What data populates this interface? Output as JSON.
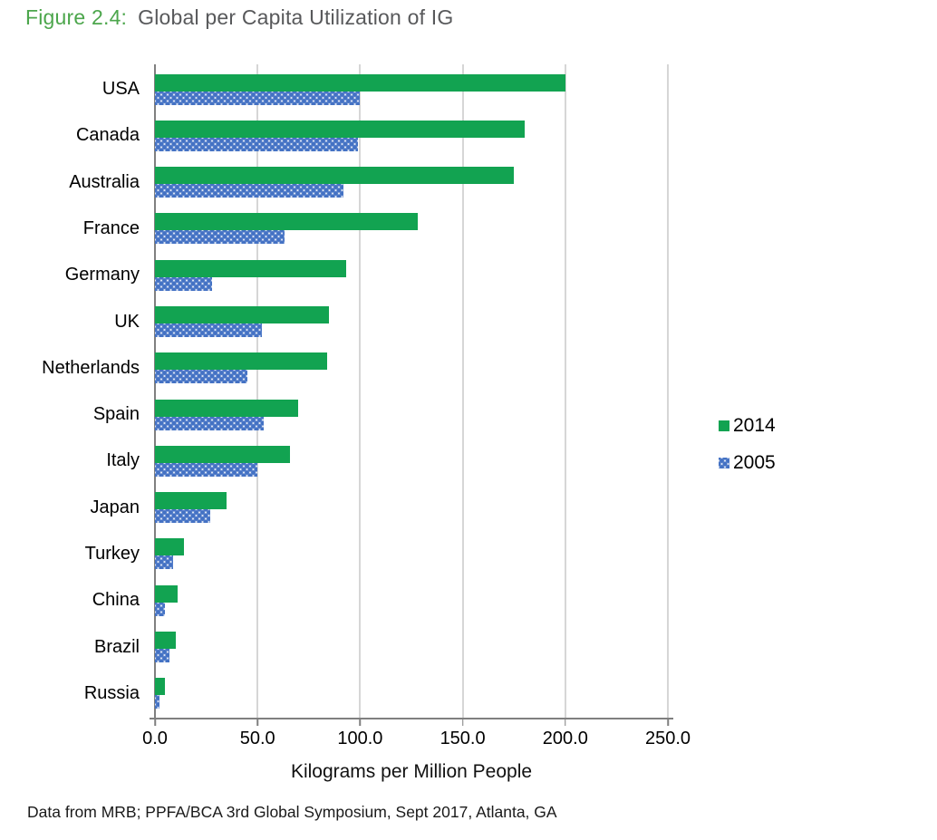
{
  "figure": {
    "label": "Figure 2.4:",
    "title": "Global per Capita Utilization of IG"
  },
  "chart_data": {
    "type": "bar",
    "orientation": "horizontal",
    "title": "Global per Capita Utilization of IG",
    "categories": [
      "USA",
      "Canada",
      "Australia",
      "France",
      "Germany",
      "UK",
      "Netherlands",
      "Spain",
      "Italy",
      "Japan",
      "Turkey",
      "China",
      "Brazil",
      "Russia"
    ],
    "series": [
      {
        "name": "2014",
        "color": "#12A351",
        "style": "solid",
        "values": [
          200,
          180,
          175,
          128,
          93,
          85,
          84,
          70,
          66,
          35,
          14,
          11,
          10,
          5
        ]
      },
      {
        "name": "2005",
        "color": "#4472C4",
        "style": "dotted-pattern",
        "values": [
          100,
          99,
          92,
          63,
          28,
          52,
          45,
          53,
          50,
          27,
          9,
          5,
          7,
          2
        ]
      }
    ],
    "xlabel": "Kilograms per Million People",
    "ylabel": "",
    "xlim": [
      0,
      250
    ],
    "x_ticks": [
      0,
      50,
      100,
      150,
      200,
      250
    ],
    "x_tick_labels": [
      "0.0",
      "50.0",
      "100.0",
      "150.0",
      "200.0",
      "250.0"
    ],
    "grid": true,
    "grid_axis": "x",
    "legend_position": "right"
  },
  "footer": {
    "text": "Data from MRB; PPFA/BCA 3rd Global Symposium, Sept 2017, Atlanta, GA"
  }
}
